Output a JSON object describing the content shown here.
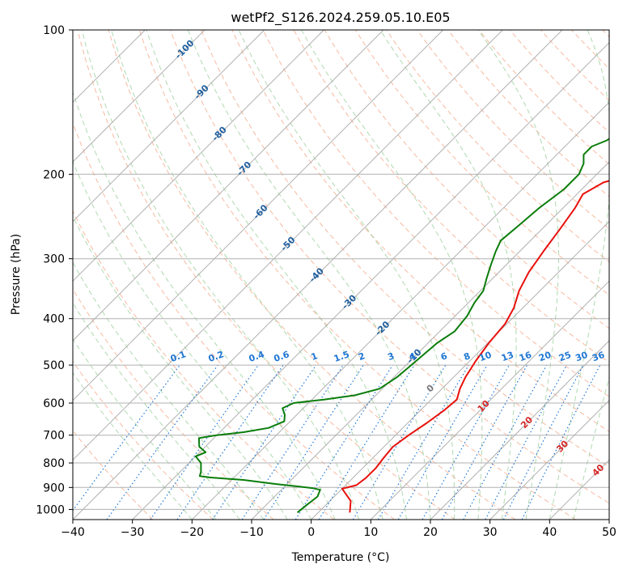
{
  "chart_data": {
    "type": "line",
    "title": "wetPf2_S126.2024.259.05.10.E05",
    "xlabel": "Temperature (°C)",
    "ylabel": "Pressure (hPa)",
    "xlim": [
      -40,
      50
    ],
    "ylim": [
      1050,
      100
    ],
    "y_scale": "log",
    "x_ticks": [
      -40,
      -30,
      -20,
      -10,
      0,
      10,
      20,
      30,
      40,
      50
    ],
    "y_ticks": [
      100,
      200,
      300,
      400,
      500,
      600,
      700,
      800,
      900,
      1000
    ],
    "x_tick_labels": [
      "−40",
      "−30",
      "−20",
      "−10",
      "0",
      "10",
      "20",
      "30",
      "40",
      "50"
    ],
    "y_tick_labels": [
      "100",
      "200",
      "300",
      "400",
      "500",
      "600",
      "700",
      "800",
      "900",
      "1000"
    ],
    "grid": true,
    "series": [
      {
        "key": "temperature",
        "color": "#e8100c",
        "points": [
          [
            5.3,
            1015
          ],
          [
            3.5,
            960
          ],
          [
            0.0,
            905
          ],
          [
            1.8,
            890
          ],
          [
            2.2,
            860
          ],
          [
            2.2,
            820
          ],
          [
            1.8,
            780
          ],
          [
            1.5,
            740
          ],
          [
            2.2,
            700
          ],
          [
            3.2,
            660
          ],
          [
            4.0,
            620
          ],
          [
            4.3,
            590
          ],
          [
            3.0,
            560
          ],
          [
            2.0,
            530
          ],
          [
            1.0,
            490
          ],
          [
            0.2,
            450
          ],
          [
            -0.3,
            410
          ],
          [
            -1.5,
            380
          ],
          [
            -3.5,
            350
          ],
          [
            -5.0,
            320
          ],
          [
            -6.0,
            290
          ],
          [
            -7.0,
            260
          ],
          [
            -8.0,
            235
          ],
          [
            -9.0,
            220
          ],
          [
            -7.5,
            208
          ],
          [
            -4.0,
            200
          ],
          [
            0.0,
            192
          ],
          [
            5.0,
            182
          ],
          [
            9.0,
            170
          ],
          [
            12.5,
            155
          ],
          [
            14.0,
            140
          ],
          [
            15.5,
            130
          ],
          [
            17.5,
            120
          ],
          [
            18.0,
            113
          ],
          [
            18.5,
            108
          ],
          [
            21.0,
            102
          ],
          [
            22.5,
            100
          ]
        ]
      },
      {
        "key": "dewpoint",
        "color": "#0b7d0b",
        "points": [
          [
            -3.5,
            1015
          ],
          [
            -3.2,
            980
          ],
          [
            -2.8,
            940
          ],
          [
            -3.5,
            910
          ],
          [
            -5.0,
            903
          ],
          [
            -8.0,
            895
          ],
          [
            -12.0,
            885
          ],
          [
            -18.0,
            868
          ],
          [
            -24.0,
            858
          ],
          [
            -26.0,
            852
          ],
          [
            -26.5,
            835
          ],
          [
            -28.0,
            800
          ],
          [
            -30.0,
            775
          ],
          [
            -29.0,
            760
          ],
          [
            -31.0,
            740
          ],
          [
            -32.5,
            710
          ],
          [
            -30.0,
            700
          ],
          [
            -26.0,
            690
          ],
          [
            -22.5,
            676
          ],
          [
            -21.0,
            655
          ],
          [
            -22.0,
            635
          ],
          [
            -23.5,
            615
          ],
          [
            -22.5,
            600
          ],
          [
            -18.0,
            590
          ],
          [
            -13.5,
            578
          ],
          [
            -10.5,
            560
          ],
          [
            -9.5,
            530
          ],
          [
            -9.0,
            490
          ],
          [
            -8.5,
            450
          ],
          [
            -7.5,
            425
          ],
          [
            -8.0,
            395
          ],
          [
            -9.0,
            370
          ],
          [
            -9.5,
            350
          ],
          [
            -11.0,
            330
          ],
          [
            -12.5,
            310
          ],
          [
            -14.0,
            290
          ],
          [
            -15.0,
            275
          ],
          [
            -14.5,
            255
          ],
          [
            -14.0,
            235
          ],
          [
            -13.0,
            215
          ],
          [
            -13.0,
            200
          ],
          [
            -14.0,
            190
          ],
          [
            -15.5,
            182
          ],
          [
            -15.5,
            175
          ],
          [
            -14.0,
            170
          ],
          [
            -13.5,
            165
          ],
          [
            -11.0,
            155
          ],
          [
            -6.5,
            135
          ],
          [
            -5.0,
            127
          ],
          [
            -4.0,
            120
          ],
          [
            -2.0,
            115
          ],
          [
            0.0,
            110
          ],
          [
            1.0,
            106
          ],
          [
            2.0,
            101
          ],
          [
            2.5,
            100
          ]
        ]
      }
    ],
    "dry_adiabat_labels": [
      "-100",
      "-90",
      "-80",
      "-70",
      "-60",
      "-50",
      "-40",
      "-30",
      "-20",
      "-10"
    ],
    "mixing_ratio_labels": [
      "0.1",
      "0.2",
      "0.4",
      "0.6",
      "1",
      "1.5",
      "2",
      "3",
      "4",
      "6",
      "8",
      "10",
      "13",
      "16",
      "20",
      "25",
      "30",
      "36"
    ],
    "moist_adiabat_labels": [
      "0",
      "10",
      "20",
      "30",
      "40"
    ],
    "colors": {
      "isotherm": "#b0b0b0",
      "isobar": "#b0b0b0",
      "dry_adiabat": "#f4a382",
      "moist_adiabat": "#8fc98f",
      "mixing_ratio": "#1f77d4",
      "dry_label": "#1f5f9e",
      "moist_label": "#d62728",
      "brown_curve": "#d2b48c"
    }
  }
}
